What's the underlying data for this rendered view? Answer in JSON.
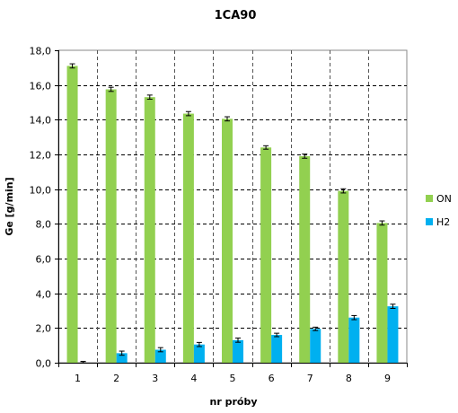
{
  "chart_data": {
    "type": "bar",
    "title": "1CA90",
    "xlabel": "nr próby",
    "ylabel": "Ge [g/min]",
    "categories": [
      "1",
      "2",
      "3",
      "4",
      "5",
      "6",
      "7",
      "8",
      "9"
    ],
    "ylim": [
      0,
      18
    ],
    "yticks": [
      "0,0",
      "2,0",
      "4,0",
      "6,0",
      "8,0",
      "10,0",
      "12,0",
      "14,0",
      "16,0",
      "18,0"
    ],
    "grid": true,
    "legend_position": "right",
    "series": [
      {
        "name": "ON",
        "color": "#92d050",
        "values": [
          17.1,
          15.75,
          15.3,
          14.35,
          14.05,
          12.4,
          11.9,
          9.9,
          8.05
        ],
        "errors": [
          0.12,
          0.12,
          0.12,
          0.12,
          0.12,
          0.1,
          0.12,
          0.12,
          0.12
        ]
      },
      {
        "name": "H2",
        "color": "#00b0f0",
        "values": [
          0.0,
          0.55,
          0.75,
          1.05,
          1.3,
          1.6,
          1.95,
          2.6,
          3.25
        ],
        "errors": [
          0.08,
          0.12,
          0.12,
          0.12,
          0.12,
          0.1,
          0.1,
          0.12,
          0.12
        ]
      }
    ]
  }
}
